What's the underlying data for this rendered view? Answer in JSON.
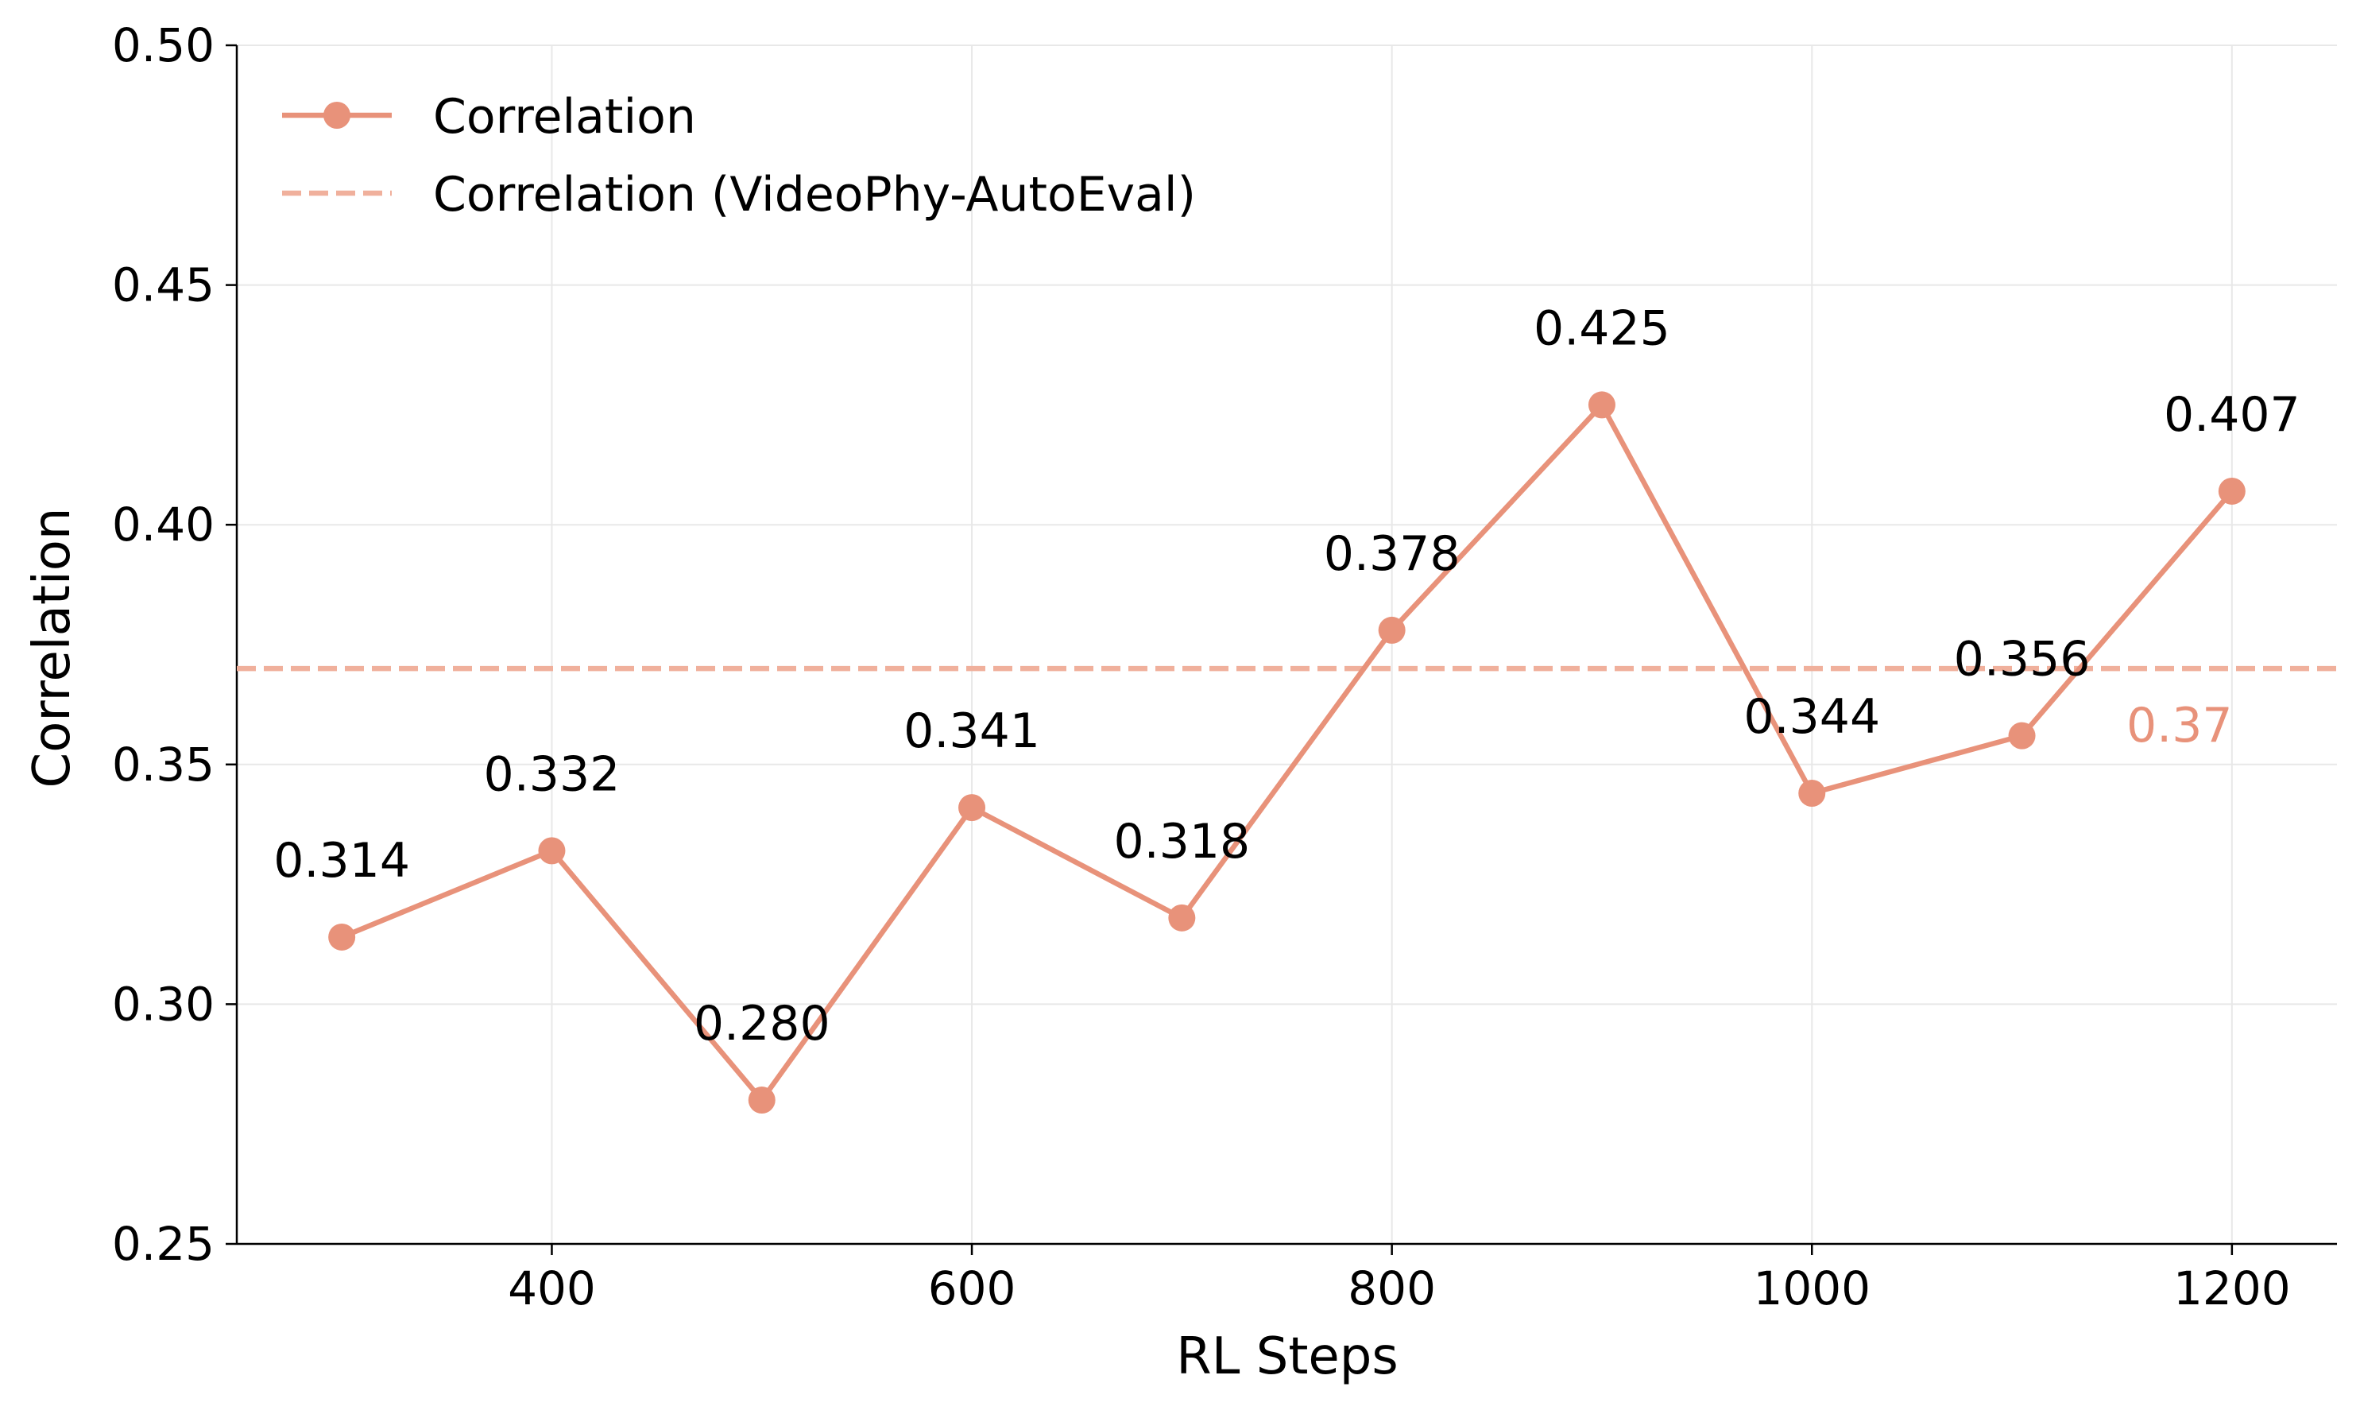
{
  "chart_data": {
    "type": "line",
    "xlabel": "RL Steps",
    "ylabel": "Correlation",
    "xlim": [
      250,
      1250
    ],
    "ylim": [
      0.25,
      0.5
    ],
    "xticks": [
      400,
      600,
      800,
      1000,
      1200
    ],
    "xtick_labels": [
      "400",
      "600",
      "800",
      "1000",
      "1200"
    ],
    "yticks": [
      0.25,
      0.3,
      0.35,
      0.4,
      0.45,
      0.5
    ],
    "ytick_labels": [
      "0.25",
      "0.30",
      "0.35",
      "0.40",
      "0.45",
      "0.50"
    ],
    "grid": true,
    "legend_position": "top-left",
    "series": [
      {
        "name": "Correlation",
        "color": "#e8927a",
        "marker": "circle",
        "x": [
          300,
          400,
          500,
          600,
          700,
          800,
          900,
          1000,
          1100,
          1200
        ],
        "y": [
          0.314,
          0.332,
          0.28,
          0.341,
          0.318,
          0.378,
          0.425,
          0.344,
          0.356,
          0.407
        ],
        "labels": [
          "0.314",
          "0.332",
          "0.280",
          "0.341",
          "0.318",
          "0.378",
          "0.425",
          "0.344",
          "0.356",
          "0.407"
        ]
      }
    ],
    "reference_lines": [
      {
        "name": "Correlation (VideoPhy-AutoEval)",
        "color": "#f0b09c",
        "style": "dashed",
        "y": 0.37,
        "label": "0.37",
        "label_x": 1175
      }
    ]
  }
}
